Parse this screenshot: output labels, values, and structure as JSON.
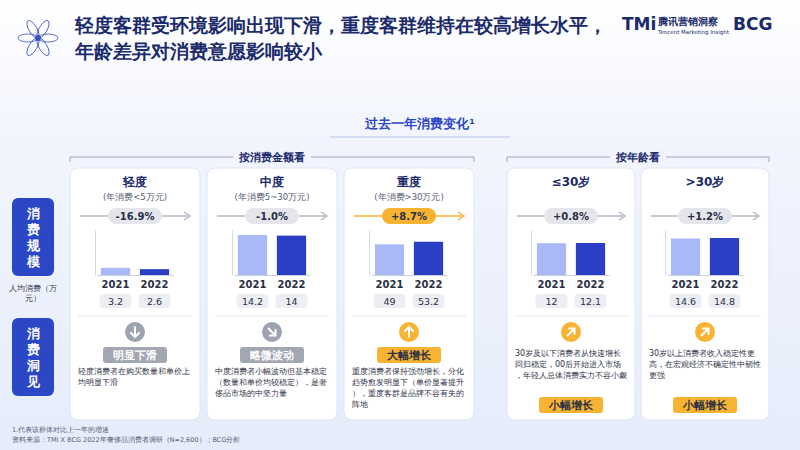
{
  "header": {
    "title": [
      "轻度客群受环境影响出现下滑，重度客群维持在较高增长水平，",
      "年龄差异对消费意愿影响较小"
    ],
    "logos": [
      "TMi",
      "腾讯营销洞察",
      "Tencent Marketing Insight",
      "BCG"
    ]
  },
  "section_title": "过去一年消费变化¹",
  "groups": [
    "按消费金额看",
    "按年龄看"
  ],
  "row_labels": [
    "消费规模",
    "消费洞见"
  ],
  "unit_label": "人均消费（万元）",
  "chart_data": [
    {
      "type": "bar",
      "title": "轻度",
      "subtitle": "(年消费<5万元)",
      "categories": [
        "2021",
        "2022"
      ],
      "values": [
        3.2,
        2.6
      ],
      "ylim": [
        0,
        20
      ],
      "colors": [
        "#a9b9f7",
        "#2b3fc4"
      ],
      "data_labels": true,
      "tick_labels": "x",
      "change": "-16.9%",
      "trend": "明显下滑",
      "insight": "轻度消费者在购买数量和单价上均明显下滑"
    },
    {
      "type": "bar",
      "title": "中度",
      "subtitle": "(年消费5~30万元)",
      "categories": [
        "2021",
        "2022"
      ],
      "values": [
        14.2,
        14.0
      ],
      "ylim": [
        0,
        16
      ],
      "colors": [
        "#a9b9f7",
        "#2b3fc4"
      ],
      "data_labels": true,
      "tick_labels": "x",
      "change": "-1.0%",
      "trend": "略微波动",
      "insight": "中度消费者小幅波动但基本稳定（数量和单价均较稳定），是奢侈品市场的中坚力量"
    },
    {
      "type": "bar",
      "title": "重度",
      "subtitle": "(年消费>30万元)",
      "categories": [
        "2021",
        "2022"
      ],
      "values": [
        49.0,
        53.2
      ],
      "ylim": [
        0,
        72
      ],
      "colors": [
        "#a9b9f7",
        "#2b3fc4"
      ],
      "data_labels": true,
      "tick_labels": "x",
      "change": "+8.7%",
      "trend": "大幅增长",
      "insight": "重度消费者保持强劲增长，分化趋势愈发明显下（单价显著提升），重度客群是品牌不容有失的阵地"
    },
    {
      "type": "bar",
      "title": "≤30岁",
      "categories": [
        "2021",
        "2022"
      ],
      "values": [
        12.0,
        12.1
      ],
      "ylim": [
        0,
        17
      ],
      "colors": [
        "#a9b9f7",
        "#2b3fc4"
      ],
      "data_labels": true,
      "tick_labels": "x",
      "change": "+0.8%",
      "trend": "小幅增长",
      "insight": "30岁及以下消费者从快速增长回归稳定，00后开始进入市场，年轻人总体消费实力不容小觑"
    },
    {
      "type": "bar",
      "title": ">30岁",
      "categories": [
        "2021",
        "2022"
      ],
      "values": [
        14.6,
        14.8
      ],
      "ylim": [
        0,
        18
      ],
      "colors": [
        "#a9b9f7",
        "#2b3fc4"
      ],
      "data_labels": true,
      "tick_labels": "x",
      "change": "+1.2%",
      "trend": "小幅增长",
      "insight": "30岁以上消费者收入稳定性更高，在宏观经济不确定性中韧性更强"
    }
  ],
  "footnotes": [
    "1.代表该群体对比上一年的增速",
    "资料来源：TMI X BCG 2022年奢侈品消费者调研（N=2,600）；BCG分析"
  ]
}
